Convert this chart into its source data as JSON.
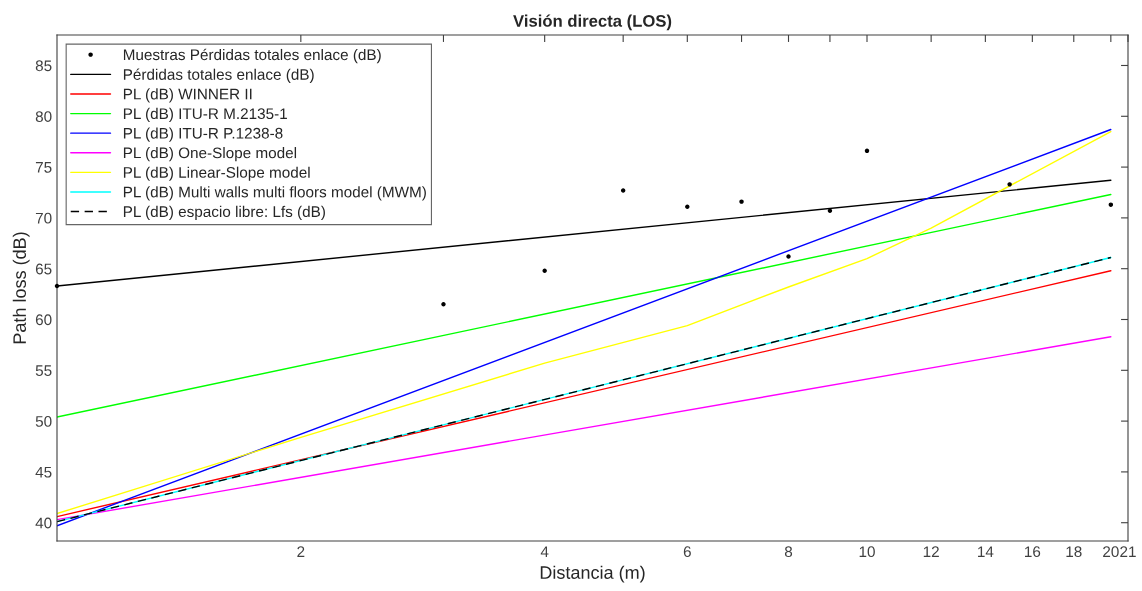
{
  "chart_data": {
    "type": "line",
    "title": "Visión directa (LOS)",
    "xlabel": "Distancia (m)",
    "ylabel": "Path loss (dB)",
    "log": "x",
    "xlim": [
      1,
      21
    ],
    "ylim": [
      38.2,
      88
    ],
    "xticks": [
      2,
      {
        "value": 3,
        "label": null
      },
      4,
      {
        "value": 5,
        "label": null
      },
      6,
      {
        "value": 7,
        "label": null
      },
      8,
      {
        "value": 9,
        "label": null
      },
      10,
      12,
      14,
      16,
      18,
      20,
      21
    ],
    "yticks": [
      40,
      45,
      50,
      55,
      60,
      65,
      70,
      75,
      80,
      85
    ],
    "grid": false,
    "legend": "top left",
    "series": [
      {
        "name": "Muestras Pérdidas totales enlace (dB)",
        "type": "scatter",
        "marker": "circle",
        "color": "#000000",
        "x": [
          1,
          3,
          4,
          5,
          6,
          7,
          8,
          9,
          10,
          15,
          20
        ],
        "values": [
          63.3,
          61.5,
          64.8,
          72.7,
          71.1,
          71.6,
          66.2,
          70.7,
          76.6,
          73.3,
          71.3
        ]
      },
      {
        "name": "Pérdidas totales enlace (dB)",
        "color": "#000000",
        "line_style": "solid",
        "x": [
          1,
          20
        ],
        "values": [
          63.3,
          73.7
        ]
      },
      {
        "name": "PL (dB) WINNER II",
        "color": "#ff0000",
        "line_style": "solid",
        "x": [
          1,
          20
        ],
        "values": [
          40.6,
          64.8
        ]
      },
      {
        "name": "PL (dB) ITU-R M.2135-1",
        "color": "#00ff00",
        "line_style": "solid",
        "x": [
          1,
          20
        ],
        "values": [
          50.4,
          72.3
        ]
      },
      {
        "name": "PL (dB) ITU-R P.1238-8",
        "color": "#0000ff",
        "line_style": "solid",
        "x": [
          1,
          20
        ],
        "values": [
          39.7,
          78.7
        ]
      },
      {
        "name": "PL (dB) One-Slope model",
        "color": "#ff00ff",
        "line_style": "solid",
        "x": [
          1,
          20
        ],
        "values": [
          40.3,
          58.3
        ]
      },
      {
        "name": "PL (dB) Linear-Slope model",
        "color": "#ffff00",
        "line_style": "solid",
        "x": [
          1,
          2,
          4,
          6,
          8,
          10,
          12,
          20
        ],
        "values": [
          40.9,
          48.4,
          55.7,
          59.4,
          63.2,
          66.0,
          69.0,
          78.5
        ]
      },
      {
        "name": "PL (dB) Multi walls multi floors model (MWM)",
        "color": "#00ffff",
        "line_style": "solid",
        "x": [
          1,
          20
        ],
        "values": [
          40.1,
          66.1
        ]
      },
      {
        "name": "PL (dB) espacio libre: Lfs (dB)",
        "color": "#000000",
        "line_style": "dashed",
        "x": [
          1,
          20
        ],
        "values": [
          40.1,
          66.1
        ]
      }
    ]
  }
}
